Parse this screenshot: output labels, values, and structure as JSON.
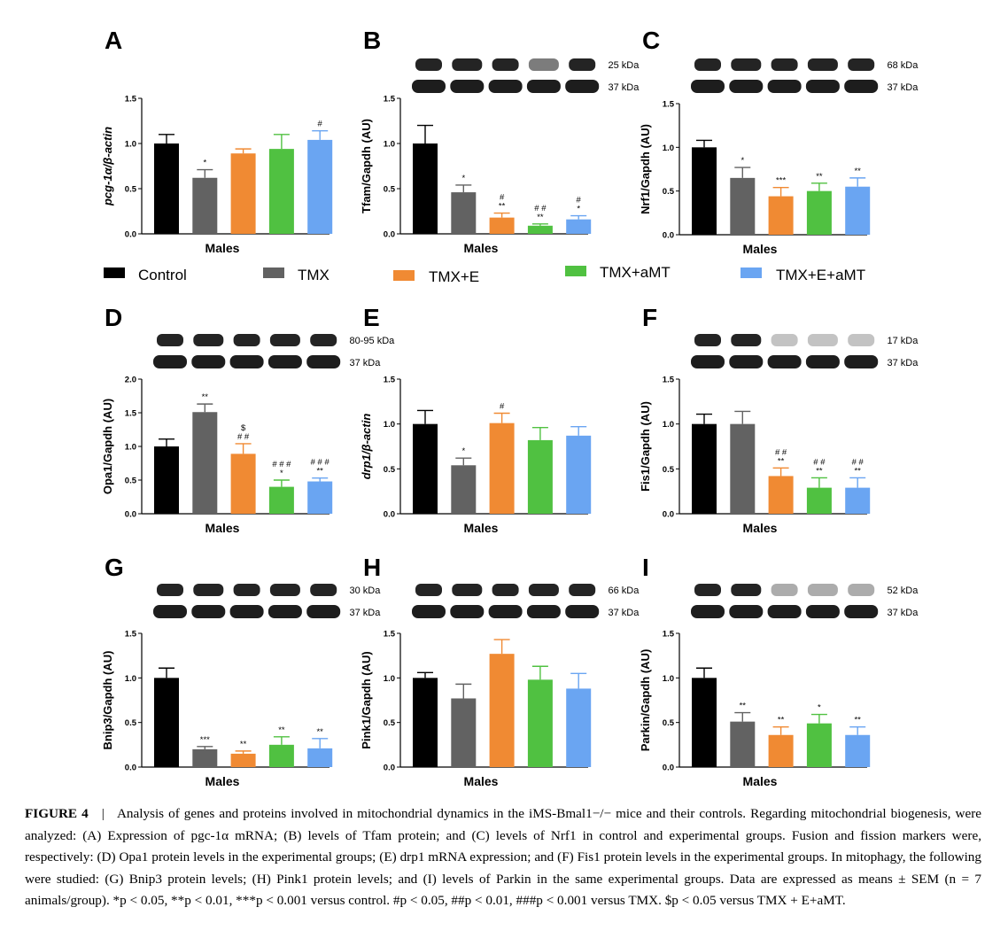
{
  "colors": {
    "Control": "#000000",
    "TMX": "#626262",
    "TMX+E": "#f08a33",
    "TMX+aMT": "#50c141",
    "TMX+E+aMT": "#6aa5f2"
  },
  "legend": {
    "items": [
      "Control",
      "TMX",
      "TMX+E",
      "TMX+aMT",
      "TMX+E+aMT"
    ]
  },
  "chart_data": [
    {
      "panel": "A",
      "type": "bar",
      "ylabel": "pcg-1α/β-actin",
      "ylabel_italic": true,
      "xlabel": "Males",
      "ylim": [
        0,
        1.5
      ],
      "yticks": [
        "0.0",
        "0.5",
        "1.0",
        "1.5"
      ],
      "blot": null,
      "categories": [
        "Control",
        "TMX",
        "TMX+E",
        "TMX+aMT",
        "TMX+E+aMT"
      ],
      "values": [
        1.0,
        0.62,
        0.89,
        0.94,
        1.04
      ],
      "errors": [
        0.1,
        0.09,
        0.05,
        0.16,
        0.1
      ],
      "annotations": [
        [],
        [
          "*"
        ],
        [],
        [],
        [
          "#"
        ]
      ]
    },
    {
      "panel": "B",
      "type": "bar",
      "ylabel": "Tfam/Gapdh (AU)",
      "ylabel_italic": false,
      "xlabel": "Males",
      "ylim": [
        0,
        1.5
      ],
      "yticks": [
        "0.0",
        "0.5",
        "1.0",
        "1.5"
      ],
      "blot": {
        "labels": [
          "25 kDa",
          "37 kDa"
        ]
      },
      "categories": [
        "Control",
        "TMX",
        "TMX+E",
        "TMX+aMT",
        "TMX+E+aMT"
      ],
      "values": [
        1.0,
        0.46,
        0.18,
        0.09,
        0.16
      ],
      "errors": [
        0.2,
        0.08,
        0.05,
        0.02,
        0.04
      ],
      "annotations": [
        [],
        [
          "*"
        ],
        [
          "#",
          "**"
        ],
        [
          "# #",
          "**"
        ],
        [
          "#",
          "*"
        ]
      ]
    },
    {
      "panel": "C",
      "type": "bar",
      "ylabel": "Nrf1/Gapdh (AU)",
      "ylabel_italic": false,
      "xlabel": "Males",
      "ylim": [
        0,
        1.5
      ],
      "yticks": [
        "0.0",
        "0.5",
        "1.0",
        "1.5"
      ],
      "blot": {
        "labels": [
          "68 kDa",
          "37 kDa"
        ]
      },
      "categories": [
        "Control",
        "TMX",
        "TMX+E",
        "TMX+aMT",
        "TMX+E+aMT"
      ],
      "values": [
        1.0,
        0.65,
        0.44,
        0.5,
        0.55
      ],
      "errors": [
        0.08,
        0.12,
        0.1,
        0.09,
        0.1
      ],
      "annotations": [
        [],
        [
          "*"
        ],
        [
          "***"
        ],
        [
          "**"
        ],
        [
          "**"
        ]
      ]
    },
    {
      "panel": "D",
      "type": "bar",
      "ylabel": "Opa1/Gapdh (AU)",
      "ylabel_italic": false,
      "xlabel": "Males",
      "ylim": [
        0,
        2.0
      ],
      "yticks": [
        "0.0",
        "0.5",
        "1.0",
        "1.5",
        "2.0"
      ],
      "blot": {
        "labels": [
          "80-95 kDa",
          "37 kDa"
        ]
      },
      "categories": [
        "Control",
        "TMX",
        "TMX+E",
        "TMX+aMT",
        "TMX+E+aMT"
      ],
      "values": [
        1.0,
        1.51,
        0.89,
        0.4,
        0.48
      ],
      "errors": [
        0.11,
        0.12,
        0.15,
        0.1,
        0.05
      ],
      "annotations": [
        [],
        [
          "**"
        ],
        [
          "$",
          "# #"
        ],
        [
          "# # #",
          "*"
        ],
        [
          "# # #",
          "**"
        ]
      ]
    },
    {
      "panel": "E",
      "type": "bar",
      "ylabel": "drp1/β-actin",
      "ylabel_italic": true,
      "xlabel": "Males",
      "ylim": [
        0,
        1.5
      ],
      "yticks": [
        "0.0",
        "0.5",
        "1.0",
        "1.5"
      ],
      "blot": null,
      "categories": [
        "Control",
        "TMX",
        "TMX+E",
        "TMX+aMT",
        "TMX+E+aMT"
      ],
      "values": [
        1.0,
        0.54,
        1.01,
        0.82,
        0.87
      ],
      "errors": [
        0.15,
        0.08,
        0.11,
        0.14,
        0.1
      ],
      "annotations": [
        [],
        [
          "*"
        ],
        [
          "#"
        ],
        [],
        []
      ]
    },
    {
      "panel": "F",
      "type": "bar",
      "ylabel": "Fis1/Gapdh (AU)",
      "ylabel_italic": false,
      "xlabel": "Males",
      "ylim": [
        0,
        1.5
      ],
      "yticks": [
        "0.0",
        "0.5",
        "1.0",
        "1.5"
      ],
      "blot": {
        "labels": [
          "17 kDa",
          "37 kDa"
        ]
      },
      "categories": [
        "Control",
        "TMX",
        "TMX+E",
        "TMX+aMT",
        "TMX+E+aMT"
      ],
      "values": [
        1.0,
        1.0,
        0.42,
        0.29,
        0.29
      ],
      "errors": [
        0.11,
        0.14,
        0.09,
        0.11,
        0.11
      ],
      "annotations": [
        [],
        [],
        [
          "# #",
          "**"
        ],
        [
          "# #",
          "**"
        ],
        [
          "# #",
          "**"
        ]
      ]
    },
    {
      "panel": "G",
      "type": "bar",
      "ylabel": "Bnip3/Gapdh (AU)",
      "ylabel_italic": false,
      "xlabel": "Males",
      "ylim": [
        0,
        1.5
      ],
      "yticks": [
        "0.0",
        "0.5",
        "1.0",
        "1.5"
      ],
      "blot": {
        "labels": [
          "30 kDa",
          "37 kDa"
        ]
      },
      "categories": [
        "Control",
        "TMX",
        "TMX+E",
        "TMX+aMT",
        "TMX+E+aMT"
      ],
      "values": [
        1.0,
        0.2,
        0.15,
        0.25,
        0.21
      ],
      "errors": [
        0.11,
        0.03,
        0.03,
        0.09,
        0.11
      ],
      "annotations": [
        [],
        [
          "***"
        ],
        [
          "**"
        ],
        [
          "**"
        ],
        [
          "**"
        ]
      ]
    },
    {
      "panel": "H",
      "type": "bar",
      "ylabel": "Pink1/Gapdh (AU)",
      "ylabel_italic": false,
      "xlabel": "Males",
      "ylim": [
        0,
        1.5
      ],
      "yticks": [
        "0.0",
        "0.5",
        "1.0",
        "1.5"
      ],
      "blot": {
        "labels": [
          "66 kDa",
          "37 kDa"
        ]
      },
      "categories": [
        "Control",
        "TMX",
        "TMX+E",
        "TMX+aMT",
        "TMX+E+aMT"
      ],
      "values": [
        1.0,
        0.77,
        1.27,
        0.98,
        0.88
      ],
      "errors": [
        0.06,
        0.16,
        0.16,
        0.15,
        0.17
      ],
      "annotations": [
        [],
        [],
        [],
        [],
        []
      ]
    },
    {
      "panel": "I",
      "type": "bar",
      "ylabel": "Parkin/Gapdh (AU)",
      "ylabel_italic": false,
      "xlabel": "Males",
      "ylim": [
        0,
        1.5
      ],
      "yticks": [
        "0.0",
        "0.5",
        "1.0",
        "1.5"
      ],
      "blot": {
        "labels": [
          "52 kDa",
          "37 kDa"
        ]
      },
      "categories": [
        "Control",
        "TMX",
        "TMX+E",
        "TMX+aMT",
        "TMX+E+aMT"
      ],
      "values": [
        1.0,
        0.51,
        0.36,
        0.49,
        0.36
      ],
      "errors": [
        0.11,
        0.1,
        0.09,
        0.1,
        0.09
      ],
      "annotations": [
        [],
        [
          "**"
        ],
        [
          "**"
        ],
        [
          "*"
        ],
        [
          "**"
        ]
      ]
    }
  ],
  "caption": {
    "label": "FIGURE 4",
    "separator": "|",
    "text": "Analysis of genes and proteins involved in mitochondrial dynamics in the iMS-Bmal1−/− mice and their controls. Regarding mitochondrial biogenesis, were analyzed: (A) Expression of pgc-1α mRNA; (B) levels of Tfam protein; and (C) levels of Nrf1 in control and experimental groups. Fusion and fission markers were, respectively: (D) Opa1 protein levels in the experimental groups; (E) drp1 mRNA expression; and (F) Fis1 protein levels in the experimental groups. In mitophagy, the following were studied: (G) Bnip3 protein levels; (H) Pink1 protein levels; and (I) levels of Parkin in the same experimental groups. Data are expressed as means ± SEM (n = 7 animals/group). *p < 0.05, **p < 0.01, ***p < 0.001 versus control. #p < 0.05, ##p < 0.01, ###p < 0.001 versus TMX. $p < 0.05 versus TMX + E+aMT."
  }
}
